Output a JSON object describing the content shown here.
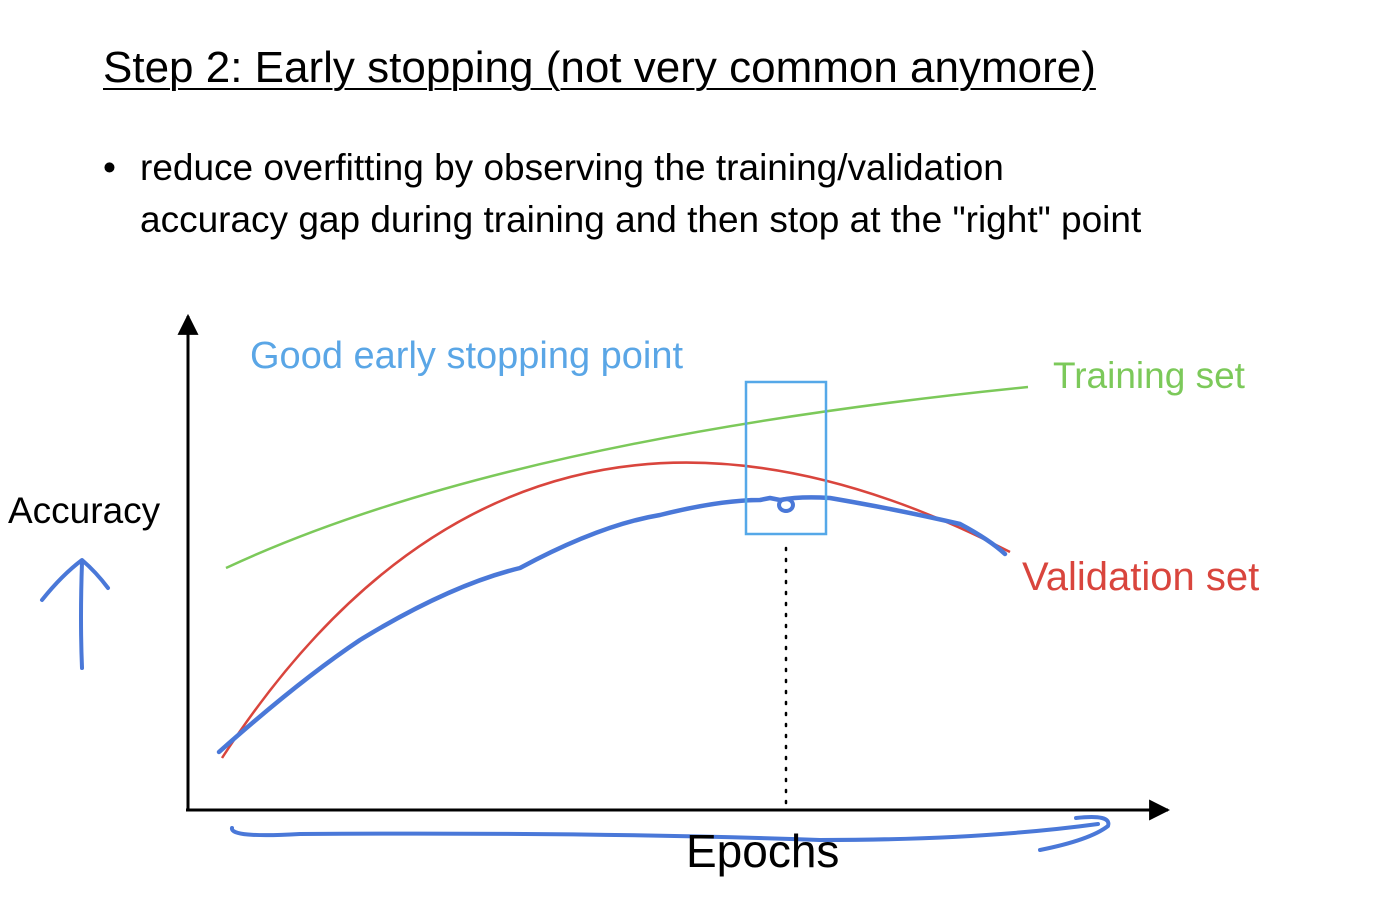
{
  "slide": {
    "title": "Step 2: Early stopping (not very common anymore)",
    "bullet_marker": "•",
    "bullet_lines": [
      "reduce overfitting by observing the training/validation",
      "accuracy gap during training and then stop at the \"right\" point"
    ]
  },
  "diagram": {
    "y_axis_label": "Accuracy",
    "x_axis_label": "Epochs",
    "stopping_point_label": "Good early stopping point",
    "training_curve_label": "Training set",
    "validation_curve_label": "Validation set",
    "colors": {
      "training": "#7cc95a",
      "validation": "#d9453d",
      "annotation_blue": "#4a78d8",
      "stopping_box": "#55a8e8",
      "stopping_label": "#5aa6e6",
      "axes": "#000000"
    }
  }
}
